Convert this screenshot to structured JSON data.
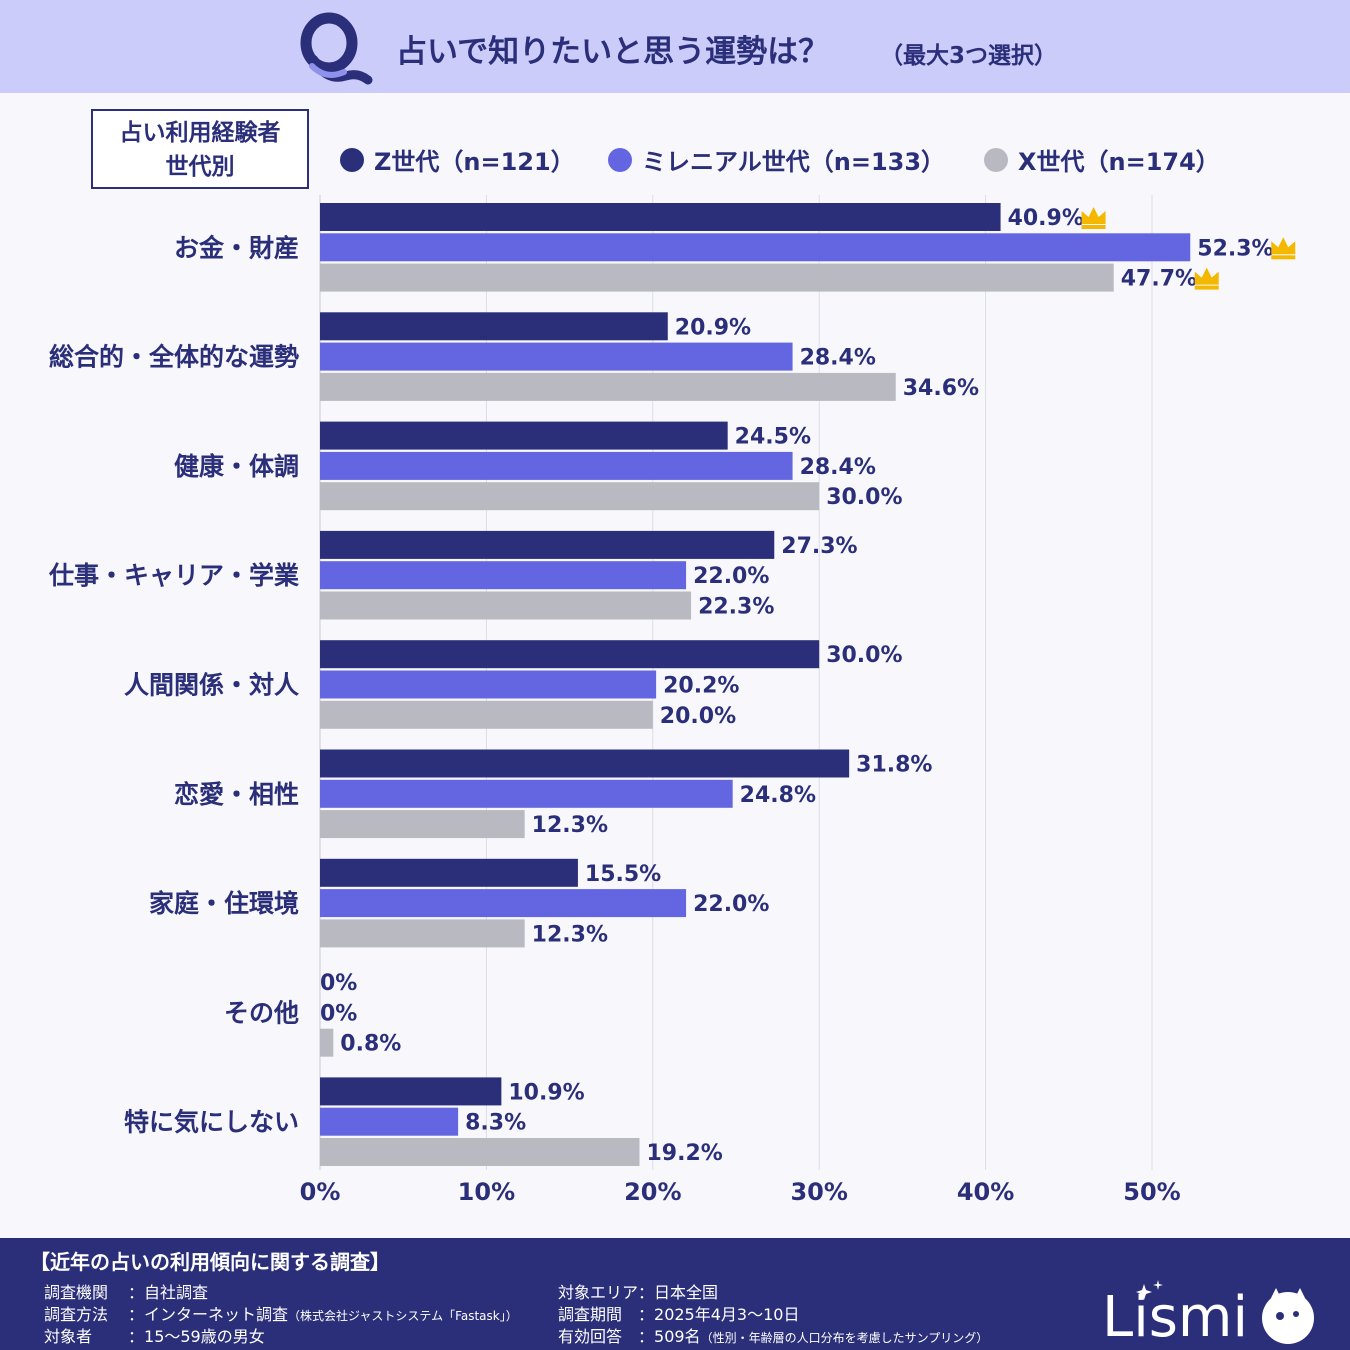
{
  "header": {
    "q_mark": "Q",
    "title": "占いで知りたいと思う運勢は？",
    "title_note": "（最大3つ選択）"
  },
  "segment": {
    "line1": "占い利用経験者",
    "line2": "世代別"
  },
  "legend": [
    {
      "label": "Z世代（n=121）",
      "color": "#2b2f7a"
    },
    {
      "label": "ミレニアル世代（n=133）",
      "color": "#6366e0"
    },
    {
      "label": "X世代（n=174）",
      "color": "#b9b9c2"
    }
  ],
  "chart_data": {
    "type": "bar",
    "orientation": "horizontal",
    "categories": [
      "お金・財産",
      "総合的・全体的な運勢",
      "健康・体調",
      "仕事・キャリア・学業",
      "人間関係・対人",
      "恋愛・相性",
      "家庭・住環境",
      "その他",
      "特に気にしない"
    ],
    "series": [
      {
        "name": "Z世代（n=121）",
        "color": "#2b2f7a",
        "values": [
          40.9,
          20.9,
          24.5,
          27.3,
          30.0,
          31.8,
          15.5,
          0,
          10.9
        ],
        "labels": [
          "40.9%",
          "20.9%",
          "24.5%",
          "27.3%",
          "30.0%",
          "31.8%",
          "15.5%",
          "0%",
          "10.9%"
        ]
      },
      {
        "name": "ミレニアル世代（n=133）",
        "color": "#6366e0",
        "values": [
          52.3,
          28.4,
          28.4,
          22.0,
          20.2,
          24.8,
          22.0,
          0,
          8.3
        ],
        "labels": [
          "52.3%",
          "28.4%",
          "28.4%",
          "22.0%",
          "20.2%",
          "24.8%",
          "22.0%",
          "0%",
          "8.3%"
        ]
      },
      {
        "name": "X世代（n=174）",
        "color": "#b9b9c2",
        "values": [
          47.7,
          34.6,
          30.0,
          22.3,
          20.0,
          12.3,
          12.3,
          0.8,
          19.2
        ],
        "labels": [
          "47.7%",
          "34.6%",
          "30.0%",
          "22.3%",
          "20.0%",
          "12.3%",
          "12.3%",
          "0.8%",
          "19.2%"
        ]
      }
    ],
    "top_marker": {
      "icon": "crown-icon",
      "color": "#f5b800",
      "category_index": 0
    },
    "xlim": [
      0,
      50
    ],
    "xticks": [
      "0%",
      "10%",
      "20%",
      "30%",
      "40%",
      "50%"
    ],
    "grid": true,
    "legend_position": "top"
  },
  "footer": {
    "heading": "【近年の占いの利用傾向に関する調査】",
    "left": [
      {
        "key": "調査機関",
        "sep": "：",
        "value": "自社調査",
        "note": ""
      },
      {
        "key": "調査方法",
        "sep": "：",
        "value": "インターネット調査",
        "note": "（株式会社ジャストシステム「Fastask」）"
      },
      {
        "key": "対象者",
        "sep": "：",
        "value": "15〜59歳の男女",
        "note": ""
      }
    ],
    "right": [
      {
        "key": "対象エリア",
        "sep": "：",
        "value": "日本全国",
        "note": ""
      },
      {
        "key": "調査期間",
        "sep": "：",
        "value": "2025年4月3〜10日",
        "note": ""
      },
      {
        "key": "有効回答",
        "sep": "：",
        "value": "509名",
        "note": "（性別・年齢層の人口分布を考慮したサンプリング）"
      }
    ],
    "logo_text": "Lismi"
  }
}
